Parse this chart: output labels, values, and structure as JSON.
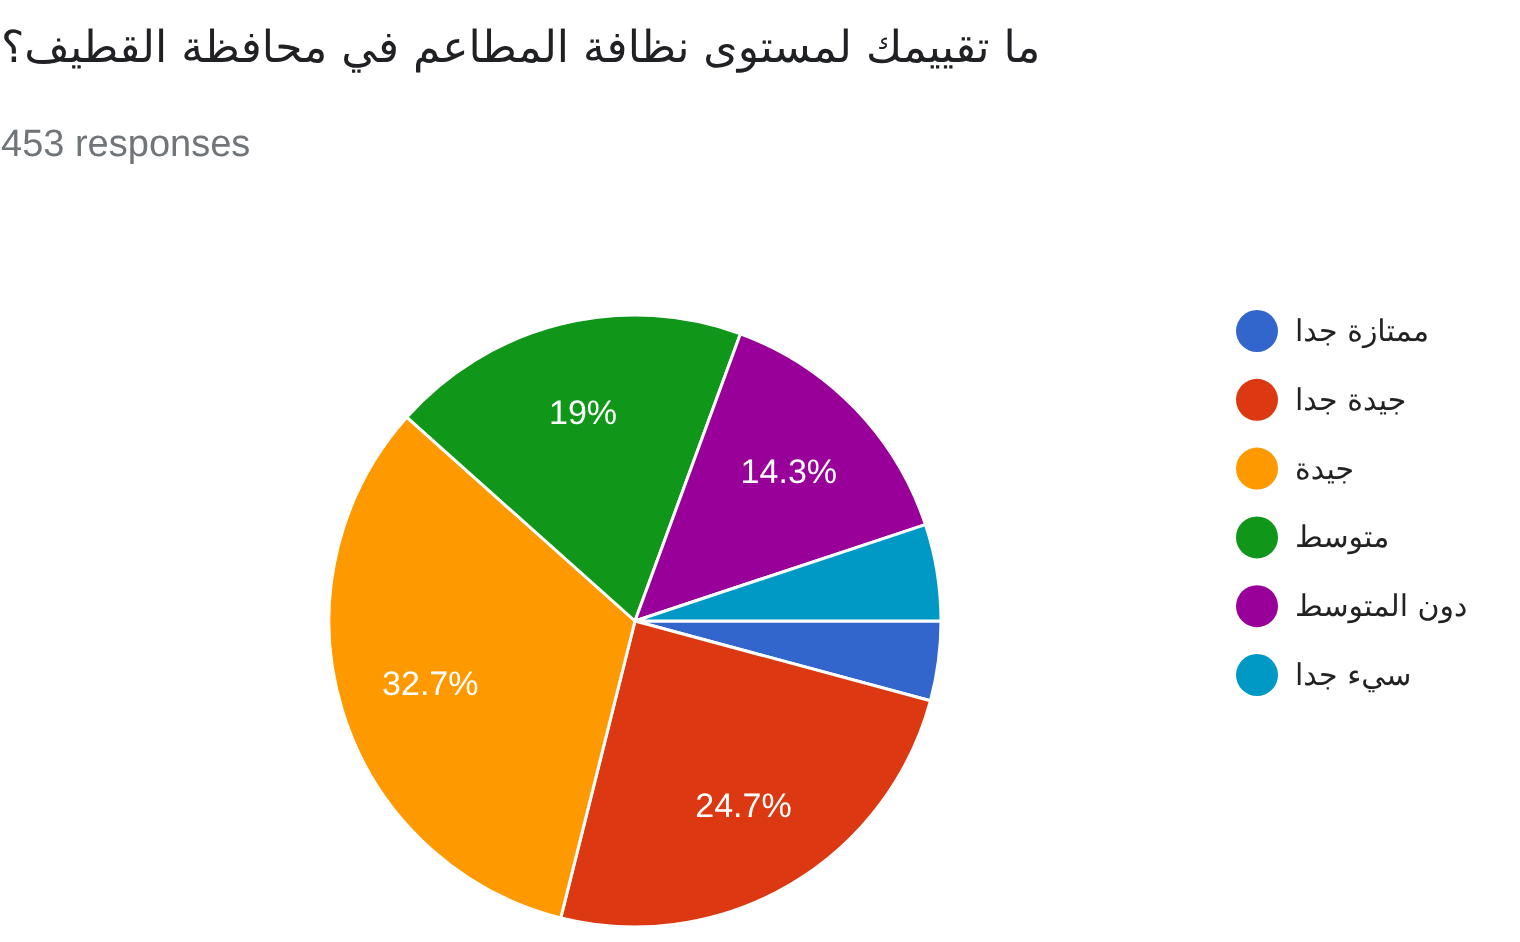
{
  "chart_data": {
    "type": "pie",
    "title": "ما تقييمك لمستوى نظافة المطاعم في محافظة القطيف؟",
    "subtitle": "453 responses",
    "categories": [
      "ممتازة جدا",
      "جيدة جدا",
      "جيدة",
      "متوسط",
      "دون المتوسط",
      "سيء جدا"
    ],
    "values": [
      4.2,
      24.7,
      32.7,
      19,
      14.3,
      5.1
    ],
    "colors": [
      "#3366cc",
      "#dc3912",
      "#ff9900",
      "#109618",
      "#990099",
      "#0099c6"
    ],
    "value_labels": [
      null,
      "24.7%",
      "32.7%",
      "19%",
      "14.3%",
      null
    ],
    "legend": "right"
  }
}
